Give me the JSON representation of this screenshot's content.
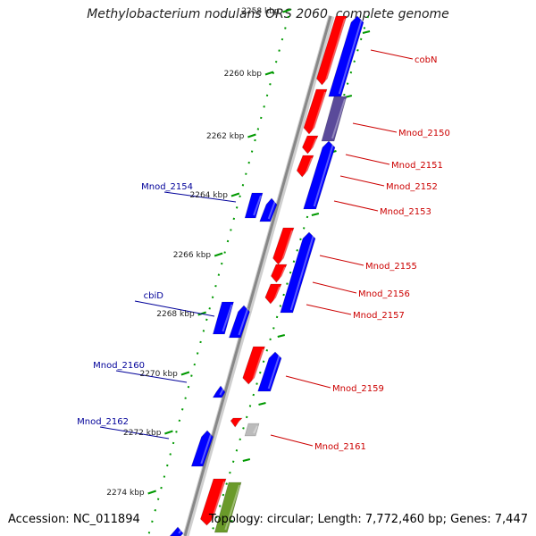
{
  "header": {
    "title": "Methylobacterium nodulans ORS 2060, complete genome"
  },
  "footer": {
    "accession": "Accession: NC_011894",
    "topology": "Topology: circular; Length: 7,772,460 bp; Genes: 7,447"
  },
  "colors": {
    "forward_strand": "#ff0000",
    "reverse_strand": "#0000ff",
    "overlap": "#5a4a9a",
    "rna": "#6a9a2a",
    "pseudogene": "#bbbbbb",
    "tick": "#009900",
    "backbone": "#888888",
    "left_label": "#000099",
    "right_label": "#cc0000"
  },
  "scale": {
    "unit": "kbp",
    "ticks": [
      "2258 kbp",
      "2260 kbp",
      "2262 kbp",
      "2264 kbp",
      "2266 kbp",
      "2268 kbp",
      "2270 kbp",
      "2272 kbp",
      "2274 kbp"
    ]
  },
  "genes": {
    "left_labels": [
      "Mnod_2154",
      "cbiD",
      "Mnod_2160",
      "Mnod_2162"
    ],
    "right_labels": [
      "cobN",
      "Mnod_2150",
      "Mnod_2151",
      "Mnod_2152",
      "Mnod_2153",
      "Mnod_2155",
      "Mnod_2156",
      "Mnod_2157",
      "Mnod_2159",
      "Mnod_2161"
    ]
  }
}
